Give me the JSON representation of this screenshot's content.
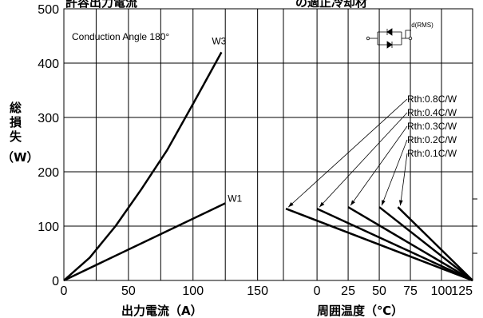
{
  "chart_data": [
    {
      "type": "line",
      "title_partial": "許容出力電流",
      "xlabel": "出力電流（A）",
      "ylabel": [
        "総",
        "損",
        "失",
        "（W）"
      ],
      "xlim": [
        0,
        170
      ],
      "ylim": [
        0,
        500
      ],
      "x_ticks": [
        "0",
        "50",
        "100",
        "150"
      ],
      "y_ticks": [
        "0",
        "100",
        "200",
        "300",
        "400",
        "500"
      ],
      "annotation": "Conduction Angle  180°",
      "series": [
        {
          "name": "W3",
          "x": [
            0,
            20,
            40,
            60,
            80,
            100,
            122
          ],
          "y": [
            0,
            42,
            100,
            168,
            240,
            325,
            420
          ]
        },
        {
          "name": "W1",
          "x": [
            0,
            125
          ],
          "y": [
            0,
            142
          ]
        }
      ]
    },
    {
      "type": "line",
      "title_partial": "の適正冷却材",
      "xlabel": "周囲温度（℃）",
      "x_ticks": [
        "0",
        "25",
        "50",
        "75",
        "100",
        "125"
      ],
      "xlim": [
        -27,
        125
      ],
      "ylim": [
        0,
        500
      ],
      "circuit_label": "Id(RMS)",
      "series": [
        {
          "name": "Rth:0.8C/W",
          "x": [
            -25,
            125
          ],
          "y": [
            132,
            0
          ]
        },
        {
          "name": "Rth:0.4C/W",
          "x": [
            0,
            125
          ],
          "y": [
            132,
            0
          ]
        },
        {
          "name": "Rth:0.3C/W",
          "x": [
            25,
            125
          ],
          "y": [
            135,
            0
          ]
        },
        {
          "name": "Rth:0.2C/W",
          "x": [
            50,
            125
          ],
          "y": [
            135,
            0
          ]
        },
        {
          "name": "Rth:0.1C/W",
          "x": [
            65,
            125
          ],
          "y": [
            135,
            0
          ]
        }
      ]
    }
  ]
}
